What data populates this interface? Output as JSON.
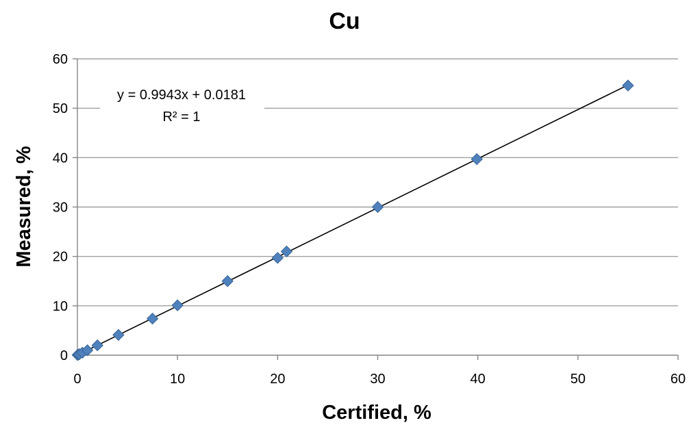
{
  "chart_data": {
    "type": "scatter",
    "title": "Cu",
    "xlabel": "Certified, %",
    "ylabel": "Measured, %",
    "xlim": [
      0,
      60
    ],
    "ylim": [
      0,
      60
    ],
    "xticks": [
      "0",
      "10",
      "20",
      "30",
      "40",
      "50",
      "60"
    ],
    "yticks": [
      "0",
      "10",
      "20",
      "30",
      "40",
      "50",
      "60"
    ],
    "grid": "horizontal",
    "colors": {
      "marker": "#4F81BD",
      "marker_edge": "#3A6596",
      "trendline": "#000000",
      "gridline": "#A0A0A0",
      "axis": "#868686"
    },
    "series": [
      {
        "marker": "diamond",
        "points": [
          {
            "x": 0.02,
            "y": 0.05
          },
          {
            "x": 0.1,
            "y": 0.12
          },
          {
            "x": 0.2,
            "y": 0.2
          },
          {
            "x": 0.5,
            "y": 0.5
          },
          {
            "x": 1.0,
            "y": 1.0
          },
          {
            "x": 2.0,
            "y": 2.0
          },
          {
            "x": 4.1,
            "y": 4.1
          },
          {
            "x": 7.5,
            "y": 7.4
          },
          {
            "x": 10.0,
            "y": 10.1
          },
          {
            "x": 15.0,
            "y": 15.0
          },
          {
            "x": 20.0,
            "y": 19.7
          },
          {
            "x": 20.9,
            "y": 21.0
          },
          {
            "x": 30.0,
            "y": 30.0
          },
          {
            "x": 39.9,
            "y": 39.7
          },
          {
            "x": 55.0,
            "y": 54.6
          }
        ]
      }
    ],
    "trendline": {
      "type": "linear",
      "slope": 0.9943,
      "intercept": 0.0181,
      "x_range": [
        0,
        55
      ]
    },
    "annotations": [
      "y = 0.9943x + 0.0181",
      "R² = 1"
    ]
  }
}
